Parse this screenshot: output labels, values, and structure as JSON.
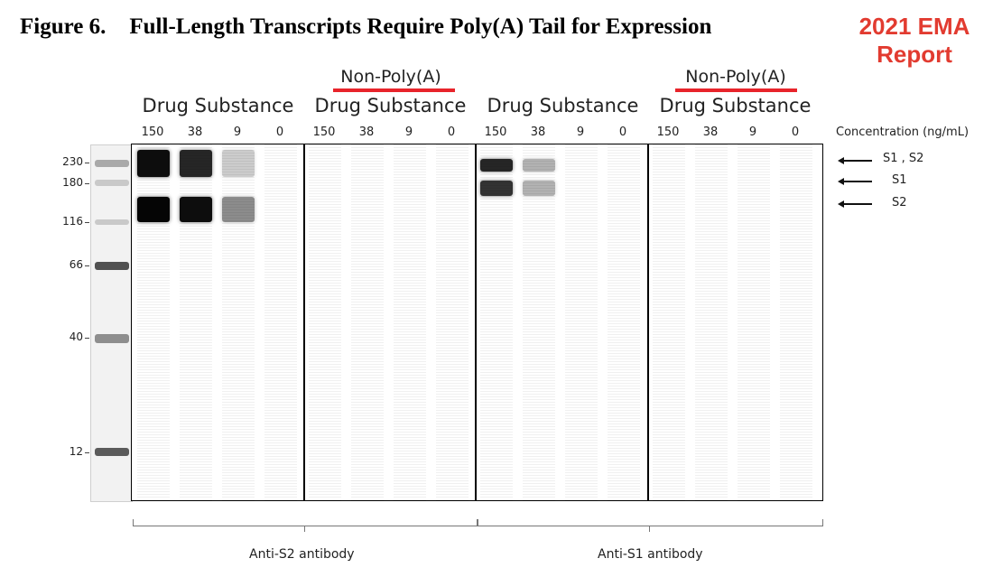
{
  "figure": {
    "number": "Figure 6.",
    "title": "Full-Length Transcripts Require Poly(A) Tail for Expression",
    "source_note": "2021 EMA Report"
  },
  "panels": [
    {
      "top_label": "",
      "label": "Drug Substance"
    },
    {
      "top_label": "Non-Poly(A)",
      "label": "Drug Substance"
    },
    {
      "top_label": "",
      "label": "Drug Substance"
    },
    {
      "top_label": "Non-Poly(A)",
      "label": "Drug Substance"
    }
  ],
  "concentrations": [
    "150",
    "38",
    "9",
    "0"
  ],
  "concentration_unit": "Concentration (ng/mL)",
  "mw_markers": [
    "230",
    "180",
    "116",
    "66",
    "40",
    "12"
  ],
  "band_labels": [
    "S1 , S2",
    "S1",
    "S2"
  ],
  "antibodies": [
    "Anti-S2  antibody",
    "Anti-S1  antibody"
  ],
  "band_intensity": {
    "panel1_upper": [
      0.95,
      0.85,
      0.2,
      0.0
    ],
    "panel1_lower": [
      0.98,
      0.95,
      0.45,
      0.0
    ],
    "panel3_upper": [
      0.85,
      0.3,
      0.0,
      0.0
    ],
    "panel3_lower": [
      0.8,
      0.3,
      0.0,
      0.0
    ]
  }
}
